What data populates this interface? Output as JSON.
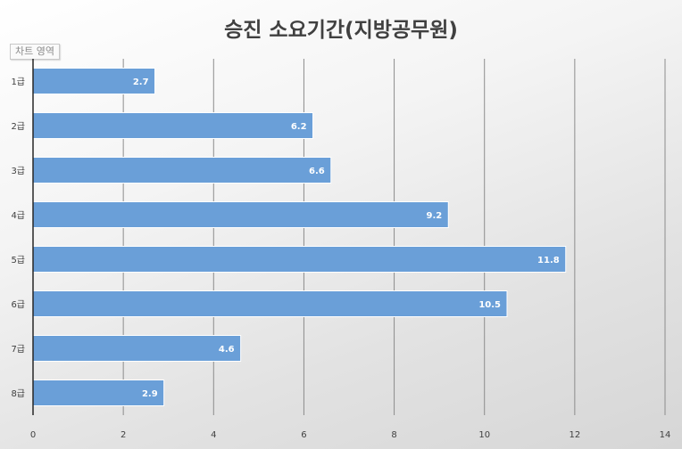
{
  "chart_data": {
    "type": "bar",
    "orientation": "horizontal",
    "title": "승진 소요기간(지방공무원)",
    "categories": [
      "1급",
      "2급",
      "3급",
      "4급",
      "5급",
      "6급",
      "7급",
      "8급"
    ],
    "series": [
      {
        "values": [
          2.7,
          6.2,
          6.6,
          9.2,
          11.8,
          10.5,
          4.6,
          2.9
        ]
      }
    ],
    "data_labels": [
      "2.7",
      "6.2",
      "6.6",
      "9.2",
      "11.8",
      "10.5",
      "4.6",
      "2.9"
    ],
    "xlim": [
      0,
      14
    ],
    "x_ticks": [
      0,
      2,
      4,
      6,
      8,
      10,
      12,
      14
    ],
    "grid": "vertical",
    "legend": "none",
    "bar_color": "#6a9fd8"
  },
  "ui": {
    "chart_area_label": "차트 영역"
  }
}
